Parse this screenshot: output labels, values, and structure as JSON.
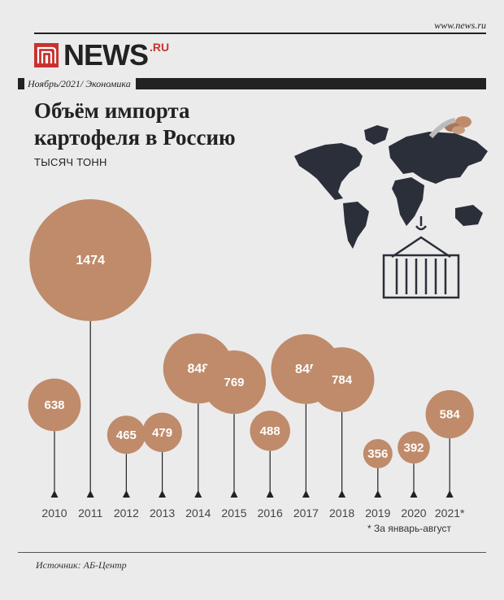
{
  "header": {
    "site_url": "www.news.ru",
    "logo_text": "NEWS",
    "logo_suffix": ".RU",
    "meta": "Ноябрь/2021/ Экономика"
  },
  "title": "Объём импорта картофеля в Россию",
  "subtitle": "ТЫСЯЧ ТОНН",
  "footnote": "* За январь-август",
  "source": "Источник: АБ-Центр",
  "colors": {
    "bubble": "#bf8b6a",
    "text_dark": "#222222",
    "brand_red": "#c8322d",
    "background": "#ebebeb"
  },
  "chart_data": {
    "type": "bubble",
    "categories": [
      "2010",
      "2011",
      "2012",
      "2013",
      "2014",
      "2015",
      "2016",
      "2017",
      "2018",
      "2019",
      "2020",
      "2021*"
    ],
    "values": [
      638,
      1474,
      465,
      479,
      848,
      769,
      488,
      845,
      784,
      356,
      392,
      584
    ],
    "value_labels": [
      "638",
      "1474",
      "465",
      "479",
      "848",
      "769",
      "488",
      "845",
      "784",
      "356",
      "392",
      "584"
    ],
    "unit": "ТЫСЯЧ ТОНН"
  }
}
